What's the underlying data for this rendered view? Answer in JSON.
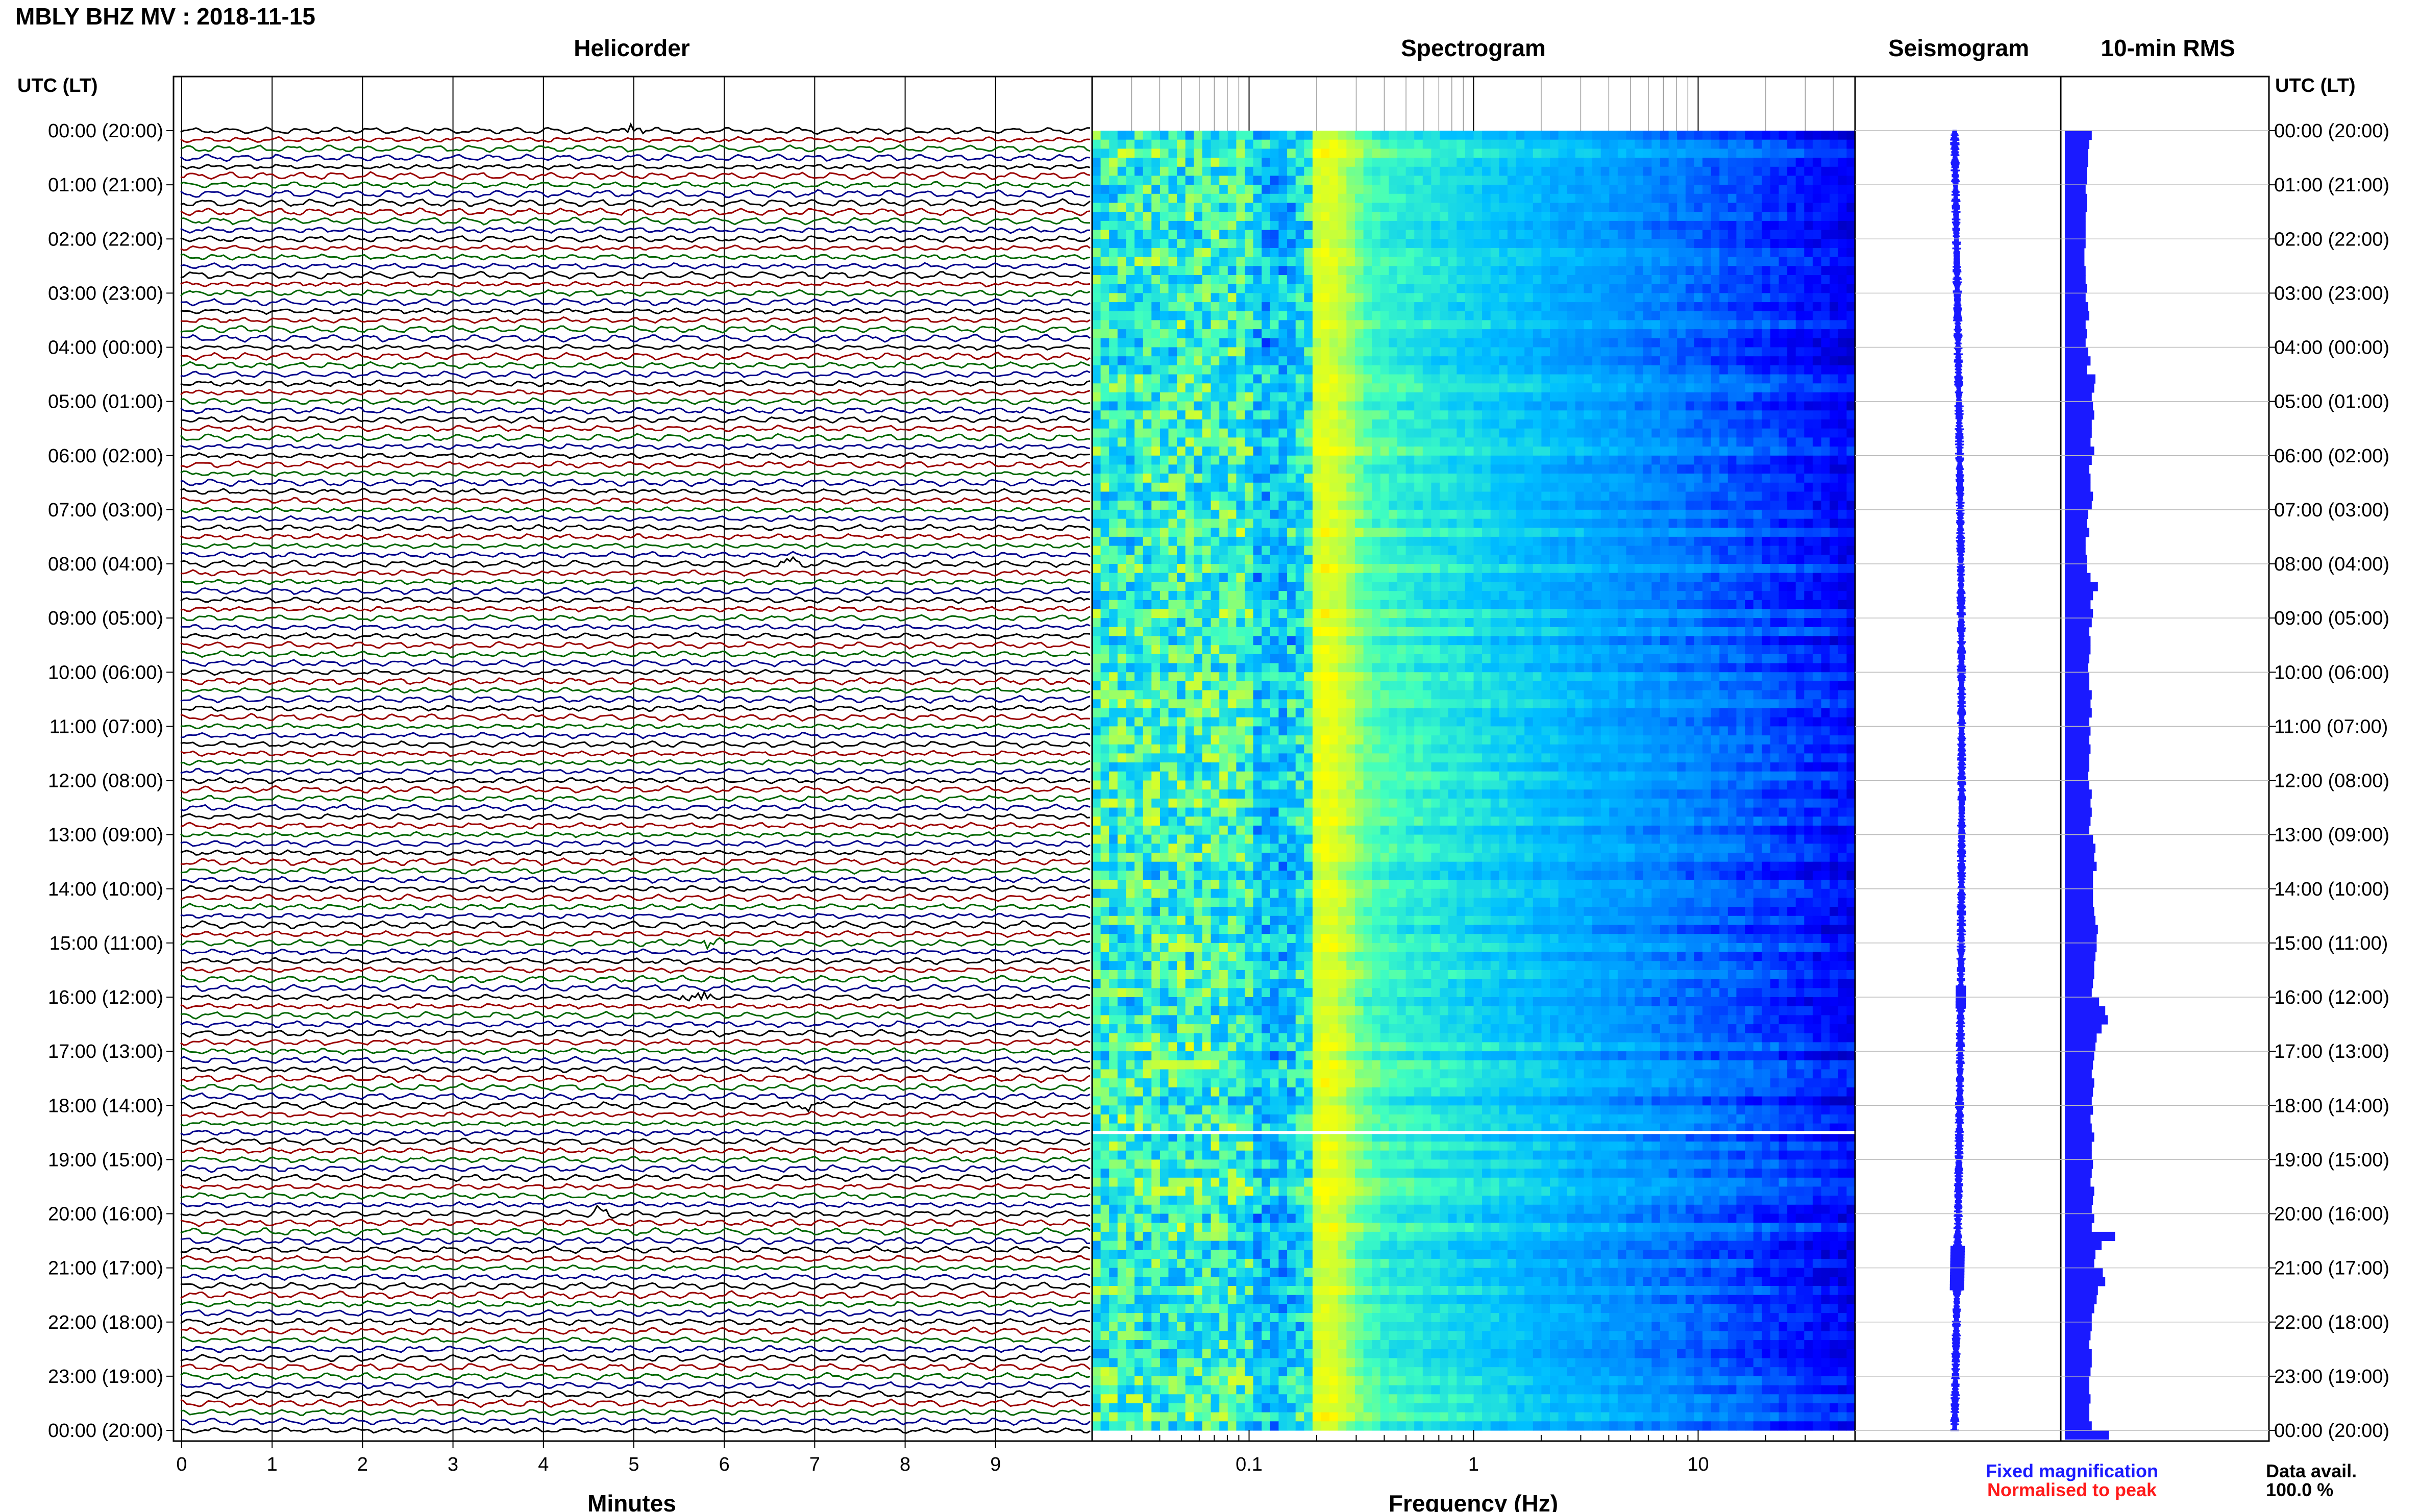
{
  "header": {
    "title": "MBLY BHZ MV : 2018-11-15"
  },
  "panels": {
    "helicorder": "Helicorder",
    "spectrogram": "Spectrogram",
    "seismogram": "Seismogram",
    "rms": "10-min RMS"
  },
  "axes": {
    "utc_header_left": "UTC (LT)",
    "utc_header_right": "UTC (LT)",
    "time_labels": [
      "00:00 (20:00)",
      "01:00 (21:00)",
      "02:00 (22:00)",
      "03:00 (23:00)",
      "04:00 (00:00)",
      "05:00 (01:00)",
      "06:00 (02:00)",
      "07:00 (03:00)",
      "08:00 (04:00)",
      "09:00 (05:00)",
      "10:00 (06:00)",
      "11:00 (07:00)",
      "12:00 (08:00)",
      "13:00 (09:00)",
      "14:00 (10:00)",
      "15:00 (11:00)",
      "16:00 (12:00)",
      "17:00 (13:00)",
      "18:00 (14:00)",
      "19:00 (15:00)",
      "20:00 (16:00)",
      "21:00 (17:00)",
      "22:00 (18:00)",
      "23:00 (19:00)",
      "00:00 (20:00)"
    ],
    "minutes_label": "Minutes",
    "minute_ticks": [
      "0",
      "1",
      "2",
      "3",
      "4",
      "5",
      "6",
      "7",
      "8",
      "9"
    ],
    "frequency_label": "Frequency (Hz)",
    "frequency_ticks": [
      "0.1",
      "1",
      "10"
    ]
  },
  "legend": {
    "fixed": "Fixed magnification",
    "normalised": "Normalised to peak",
    "fixed_color": "#1a1aff",
    "normalised_color": "#ff1a1a"
  },
  "availability": {
    "label": "Data avail.",
    "value": "100.0 %"
  },
  "chart_data": {
    "type": "heatmap",
    "station": "MBLY",
    "channel": "BHZ",
    "network": "MV",
    "date": "2018-11-15",
    "helicorder": {
      "x_unit": "minutes",
      "xlim": [
        0,
        10
      ],
      "lines_per_hour": 6,
      "hours": 24,
      "trace_colors": [
        "#000000",
        "#9a0000",
        "#006600",
        "#00008b"
      ],
      "events": [
        {
          "hour": 0,
          "minute": 5.0,
          "color": "#000000"
        },
        {
          "hour": 8,
          "minute": 6.8,
          "color": "#006600"
        },
        {
          "hour": 15,
          "minute": 5.9,
          "color": "#00008b"
        },
        {
          "hour": 16,
          "minute": 5.7,
          "color": "#00008b"
        },
        {
          "hour": 18,
          "minute": 6.9,
          "color": "#9a0000"
        },
        {
          "hour": 20,
          "minute": 4.6,
          "color": "#9a0000"
        }
      ]
    },
    "spectrogram": {
      "x_scale": "log",
      "xlim": [
        0.02,
        50
      ],
      "x_unit": "Hz",
      "colormap": [
        "#00008b",
        "#0000ff",
        "#0080ff",
        "#00c0ff",
        "#40ffbf",
        "#c0ff40",
        "#ffff00",
        "#ff8000"
      ],
      "peak_band_hz": [
        0.2,
        0.25
      ],
      "gap_hour": 18.5
    },
    "rms_10min": {
      "unit": "relative",
      "values": [
        0.22,
        0.2,
        0.19,
        0.19,
        0.18,
        0.18,
        0.17,
        0.18,
        0.18,
        0.17,
        0.17,
        0.17,
        0.17,
        0.16,
        0.16,
        0.17,
        0.17,
        0.18,
        0.17,
        0.19,
        0.2,
        0.17,
        0.18,
        0.17,
        0.19,
        0.21,
        0.18,
        0.25,
        0.24,
        0.22,
        0.23,
        0.24,
        0.22,
        0.22,
        0.21,
        0.24,
        0.22,
        0.2,
        0.21,
        0.21,
        0.23,
        0.22,
        0.19,
        0.18,
        0.2,
        0.17,
        0.17,
        0.18,
        0.18,
        0.21,
        0.27,
        0.23,
        0.21,
        0.23,
        0.22,
        0.2,
        0.21,
        0.21,
        0.2,
        0.19,
        0.2,
        0.2,
        0.22,
        0.21,
        0.22,
        0.2,
        0.21,
        0.2,
        0.21,
        0.2,
        0.2,
        0.19,
        0.2,
        0.22,
        0.21,
        0.22,
        0.21,
        0.2,
        0.23,
        0.25,
        0.24,
        0.26,
        0.23,
        0.23,
        0.23,
        0.23,
        0.24,
        0.25,
        0.27,
        0.26,
        0.26,
        0.25,
        0.24,
        0.24,
        0.23,
        0.22,
        0.28,
        0.33,
        0.35,
        0.3,
        0.26,
        0.25,
        0.24,
        0.23,
        0.22,
        0.24,
        0.23,
        0.22,
        0.23,
        0.21,
        0.22,
        0.24,
        0.22,
        0.22,
        0.23,
        0.22,
        0.21,
        0.24,
        0.23,
        0.22,
        0.24,
        0.22,
        0.41,
        0.3,
        0.25,
        0.24,
        0.31,
        0.33,
        0.27,
        0.26,
        0.24,
        0.22,
        0.22,
        0.21,
        0.2,
        0.22,
        0.22,
        0.21,
        0.2,
        0.2,
        0.21,
        0.2,
        0.2,
        0.22,
        0.36
      ]
    },
    "seismogram": {
      "hours": 24,
      "color": "#1a1aff"
    }
  }
}
